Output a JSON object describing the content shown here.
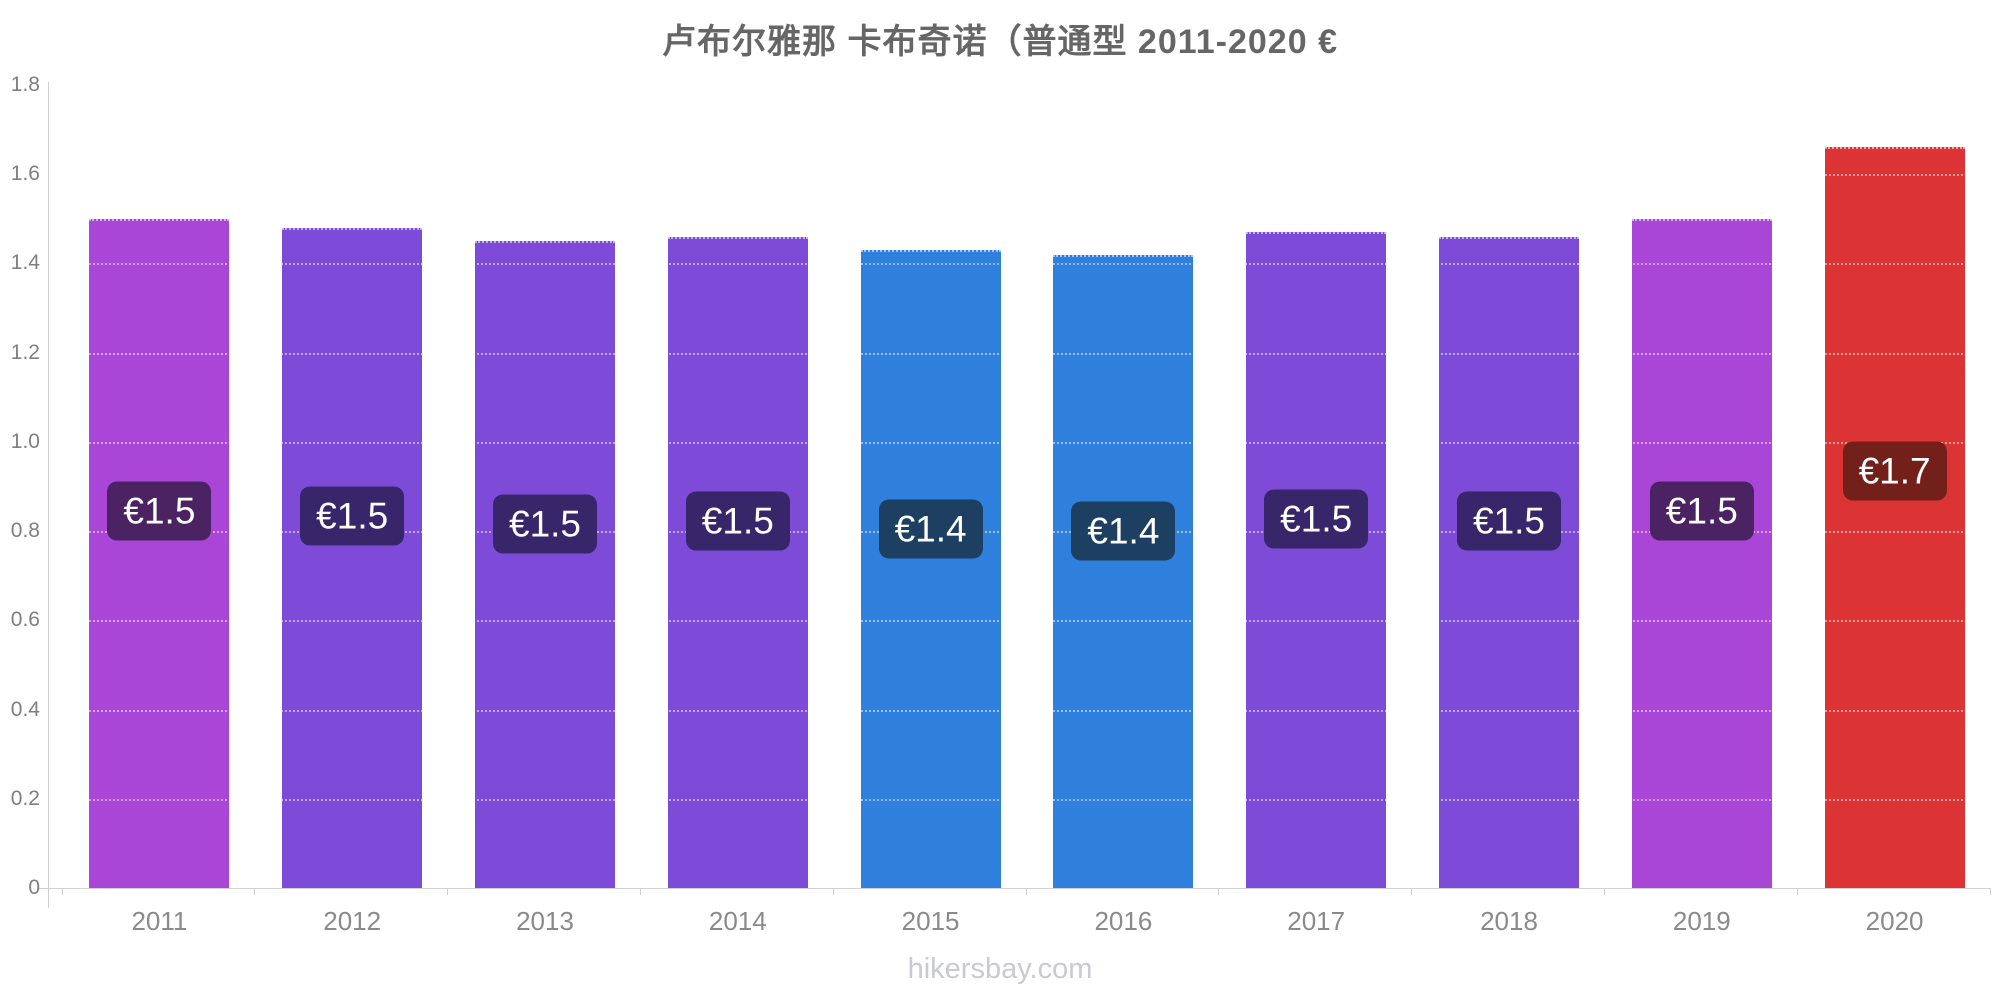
{
  "title": "卢布尔雅那 卡布奇诺（普通型 2011-2020 €",
  "footer": "hikersbay.com",
  "chart_data": {
    "type": "bar",
    "title": "卢布尔雅那 卡布奇诺（普通型 2011-2020 €",
    "xlabel": "",
    "ylabel": "",
    "categories": [
      "2011",
      "2012",
      "2013",
      "2014",
      "2015",
      "2016",
      "2017",
      "2018",
      "2019",
      "2020"
    ],
    "values": [
      1.5,
      1.48,
      1.45,
      1.46,
      1.43,
      1.42,
      1.47,
      1.46,
      1.5,
      1.66
    ],
    "point_labels": [
      "€1.5",
      "€1.5",
      "€1.5",
      "€1.5",
      "€1.4",
      "€1.4",
      "€1.5",
      "€1.5",
      "€1.5",
      "€1.7"
    ],
    "bar_colors": [
      "#a946d7",
      "#7e4bd8",
      "#7e4bd8",
      "#7e4bd8",
      "#2f80dc",
      "#2f80dc",
      "#7e4bd8",
      "#7e4bd8",
      "#a946d7",
      "#dc3434"
    ],
    "label_bg_colors": [
      "#4b2363",
      "#38266b",
      "#38266b",
      "#38266b",
      "#1d4062",
      "#1d4062",
      "#38266b",
      "#38266b",
      "#4b2363",
      "#74201a"
    ],
    "label_text_color": "#ffffff",
    "ylim": [
      0,
      1.8
    ],
    "y_ticks": [
      "0",
      "0.2",
      "0.4",
      "0.6",
      "0.8",
      "1.0",
      "1.2",
      "1.4",
      "1.6",
      "1.8"
    ],
    "grid": "light dotted horizontal lines visible over bars",
    "legend": "none",
    "currency": "€"
  },
  "colors": {
    "background": "#ffffff",
    "axis": "#cfcfcf",
    "tick_text": "#7f7f7f",
    "year_text": "#8a8a8a",
    "title_text": "#666666",
    "footer_text": "#c9c9d4"
  }
}
